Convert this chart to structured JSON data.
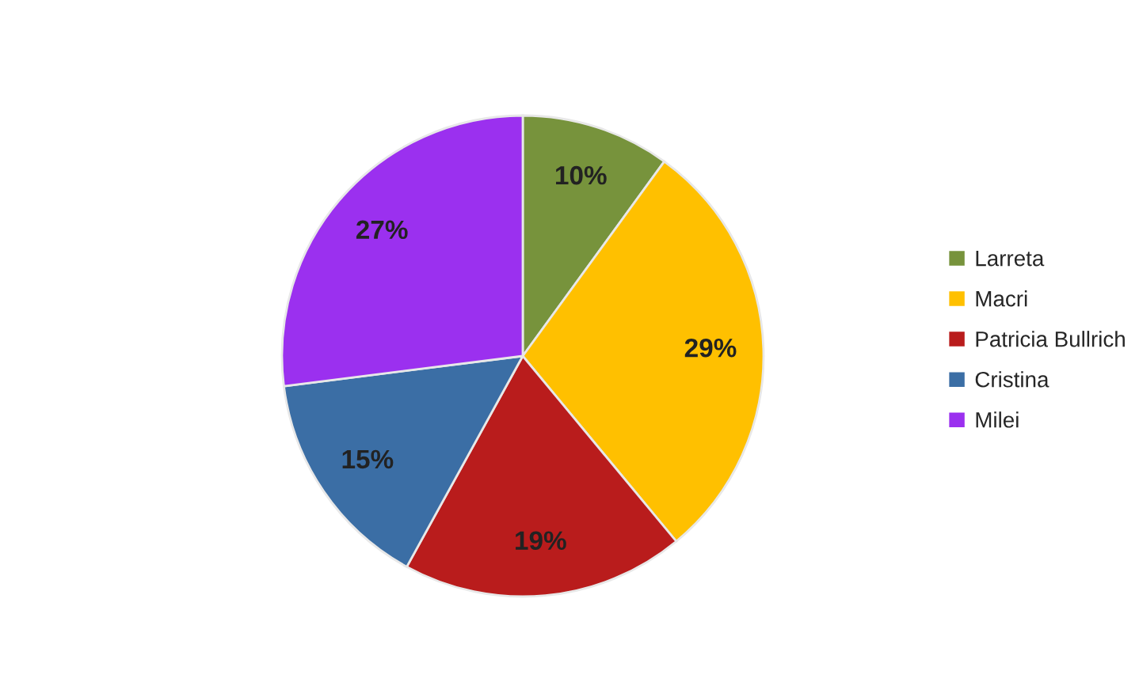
{
  "chart_data": {
    "type": "pie",
    "categories": [
      "Larreta",
      "Macri",
      "Patricia Bullrich",
      "Cristina",
      "Milei"
    ],
    "values": [
      10,
      29,
      19,
      15,
      27
    ],
    "colors": [
      "#77933c",
      "#ffc000",
      "#b91c1c",
      "#3b6ea5",
      "#9b30ef"
    ],
    "value_labels": [
      "10%",
      "29%",
      "19%",
      "15%",
      "27%"
    ],
    "legend": "right"
  }
}
